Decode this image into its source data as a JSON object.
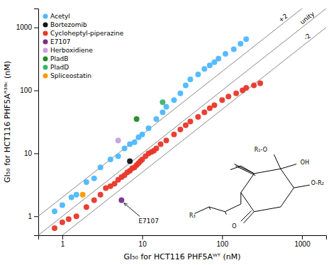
{
  "chart_data": {
    "type": "scatter",
    "title": "",
    "xlabel": "GI₅₀ for HCT116 PHF5Aᵂᵀ (nM)",
    "ylabel": "GI₅₀ for HCT116 PHF5Aᴿ³⁸ᶜ (nM)",
    "log": true,
    "grid": false,
    "legend": "upper left",
    "marker": "circle",
    "xlim": [
      0.5,
      2000
    ],
    "ylim": [
      0.5,
      2000
    ],
    "xticks": [
      1,
      10,
      100,
      1000
    ],
    "yticks": [
      1,
      10,
      100,
      1000
    ],
    "series": [
      {
        "name": "Acetyl",
        "color": "#4db8ff",
        "x": [
          0.8,
          1.0,
          1.3,
          1.5,
          2.0,
          2.5,
          3.0,
          4.0,
          5.0,
          6.0,
          7.0,
          8.0,
          9.0,
          10.0,
          12.0,
          15.0,
          18.0,
          20.0,
          25.0,
          30.0,
          35.0,
          40.0,
          50.0,
          60.0,
          70.0,
          80.0,
          90.0,
          110.0,
          140.0,
          170.0,
          200.0
        ],
        "values": [
          1.2,
          1.5,
          2.0,
          2.2,
          3.5,
          4.0,
          6.0,
          8.0,
          9.0,
          12.0,
          14.0,
          15.0,
          18.0,
          20.0,
          25.0,
          35.0,
          45.0,
          55.0,
          70.0,
          90.0,
          120.0,
          150.0,
          180.0,
          220.0,
          250.0,
          280.0,
          320.0,
          380.0,
          450.0,
          550.0,
          650.0
        ]
      },
      {
        "name": "Bortezomib",
        "color": "#111111",
        "x": [
          7.0
        ],
        "values": [
          7.5
        ]
      },
      {
        "name": "Cycloheptyl-piperazine",
        "color": "#e8362a",
        "x": [
          0.8,
          1.0,
          1.2,
          1.5,
          2.0,
          2.5,
          3.0,
          3.5,
          4.0,
          4.5,
          5.0,
          5.5,
          6.0,
          6.5,
          7.0,
          7.5,
          8.0,
          8.5,
          9.0,
          9.5,
          10.0,
          11.0,
          12.0,
          13.0,
          14.0,
          15.0,
          17.0,
          20.0,
          25.0,
          30.0,
          35.0,
          40.0,
          50.0,
          60.0,
          70.0,
          80.0,
          100.0,
          120.0,
          150.0,
          180.0,
          200.0,
          250.0,
          300.0
        ],
        "values": [
          0.65,
          0.8,
          0.9,
          1.0,
          1.4,
          1.8,
          2.2,
          2.8,
          3.0,
          3.3,
          3.8,
          4.2,
          4.5,
          5.0,
          5.3,
          5.8,
          6.0,
          6.5,
          7.0,
          7.5,
          8.0,
          9.0,
          10.0,
          10.5,
          11.0,
          12.0,
          14.0,
          16.0,
          20.0,
          24.0,
          28.0,
          32.0,
          38.0,
          45.0,
          52.0,
          58.0,
          70.0,
          80.0,
          90.0,
          100.0,
          110.0,
          120.0,
          130.0
        ]
      },
      {
        "name": "E7107",
        "color": "#7b2d8b",
        "x": [
          5.5
        ],
        "values": [
          1.8
        ]
      },
      {
        "name": "Herboxidiene",
        "color": "#c9a0dc",
        "x": [
          5.0
        ],
        "values": [
          16.0
        ]
      },
      {
        "name": "PladB",
        "color": "#228B22",
        "x": [
          8.5
        ],
        "values": [
          35.0
        ]
      },
      {
        "name": "PladD",
        "color": "#3cb371",
        "x": [
          18.0
        ],
        "values": [
          65.0
        ]
      },
      {
        "name": "Spliceostatin",
        "color": "#ff9900",
        "x": [
          1.8
        ],
        "values": [
          2.2
        ]
      }
    ],
    "reference_lines": [
      {
        "name": "+2",
        "intercept_log": 0.301,
        "color": "#888888"
      },
      {
        "name": "unity",
        "intercept_log": 0.0,
        "color": "#888888"
      },
      {
        "name": "-2",
        "intercept_log": -0.301,
        "color": "#888888"
      }
    ],
    "annotations": [
      {
        "text": "E7107",
        "x": 5.5,
        "y": 1.8
      }
    ],
    "structure_labels": [
      "O",
      "OH",
      "O-R₂",
      "R₁-O",
      "R₃"
    ]
  }
}
